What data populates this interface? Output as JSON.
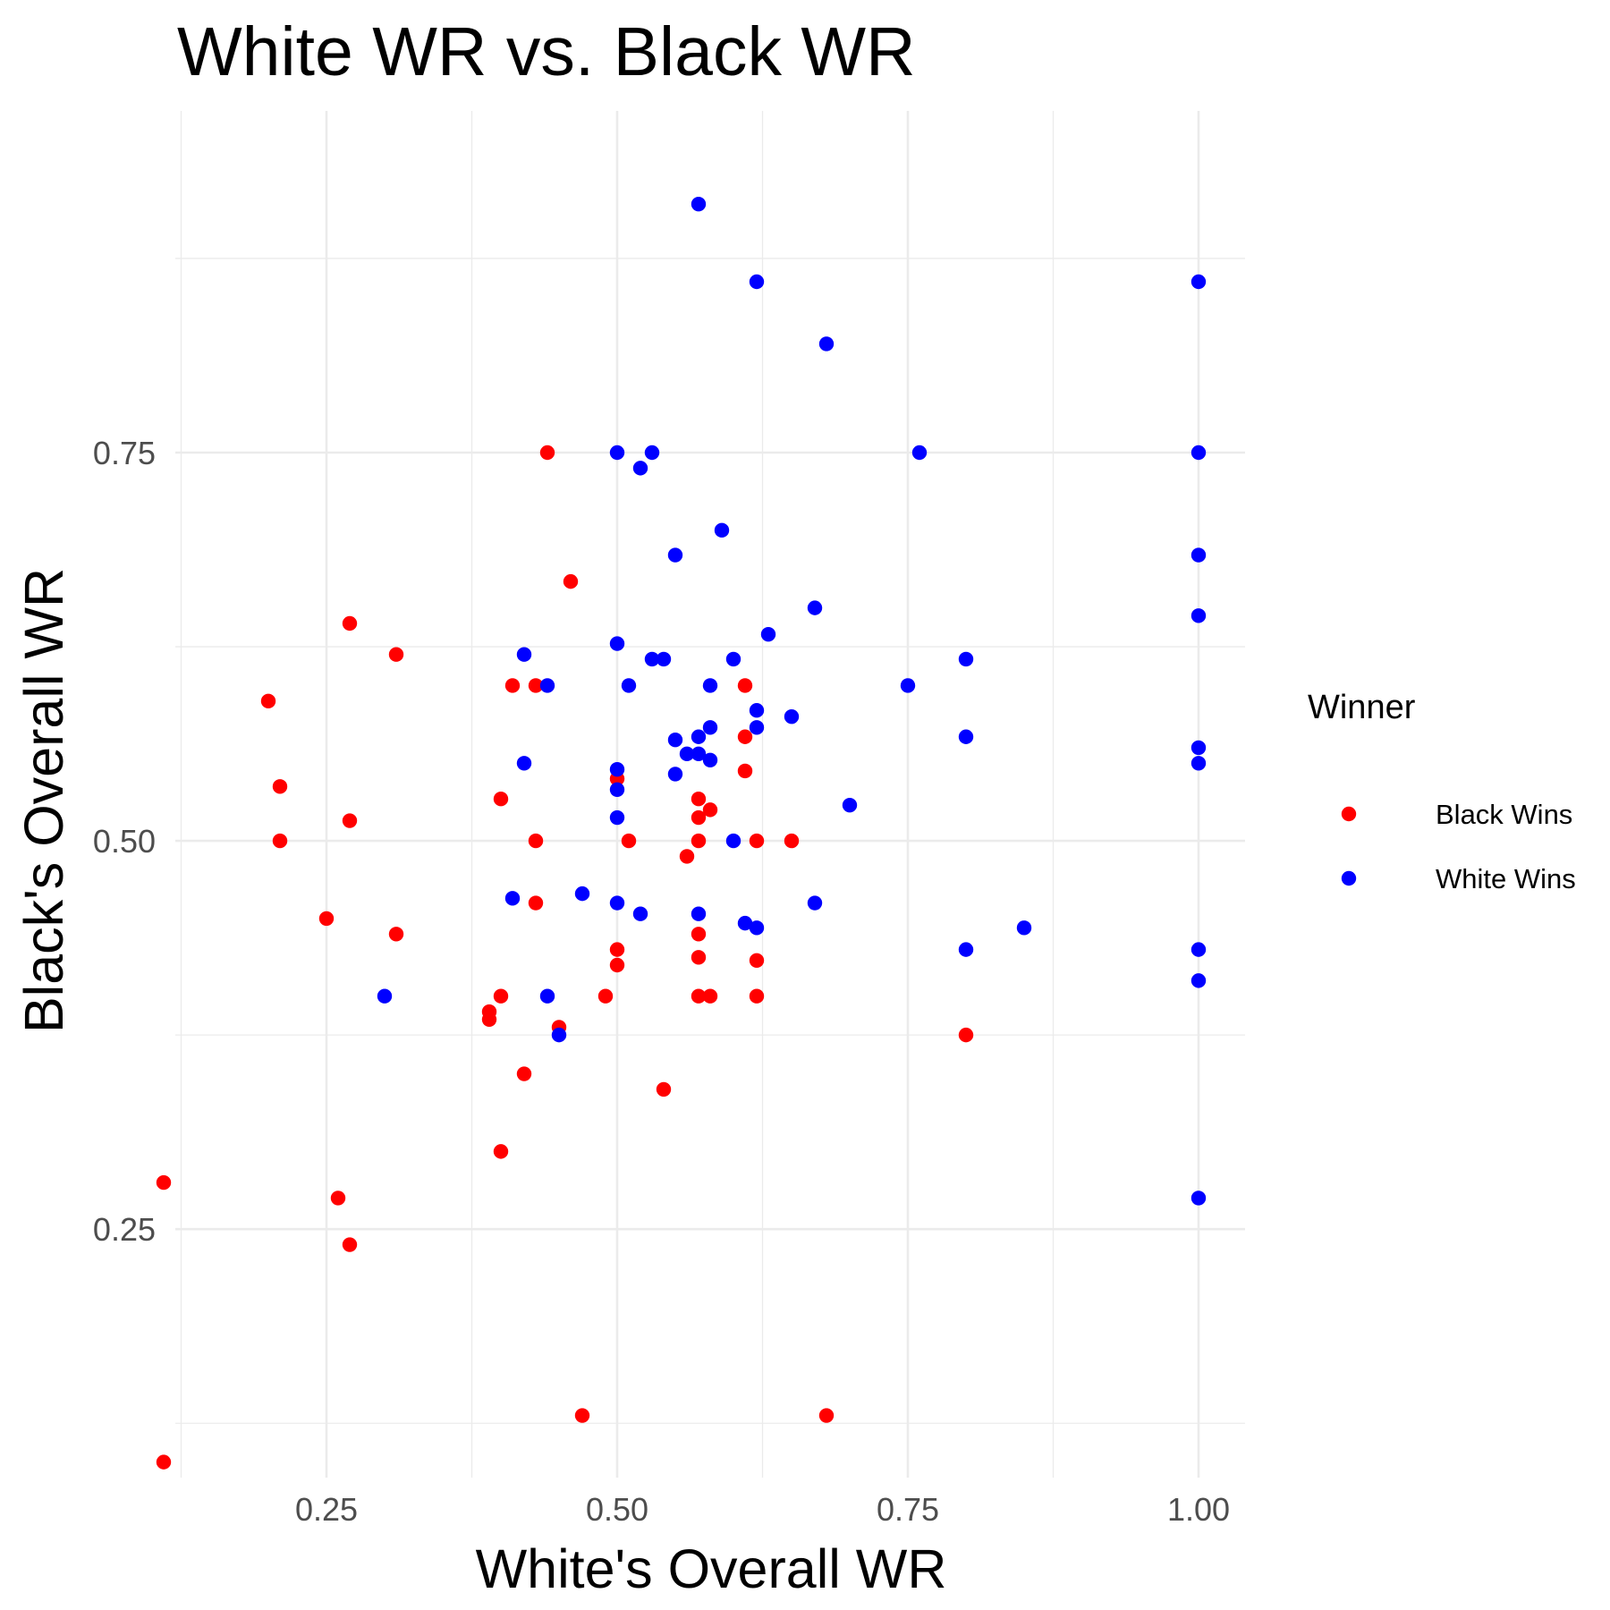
{
  "chart_data": {
    "type": "scatter",
    "title": "White WR vs. Black WR",
    "xlabel": "White's Overall WR",
    "ylabel": "Black's Overall WR",
    "xlim": [
      0.12,
      1.04
    ],
    "ylim": [
      0.09,
      0.97
    ],
    "x_ticks": [
      0.25,
      0.5,
      0.75,
      1.0
    ],
    "x_tick_labels": [
      "0.25",
      "0.50",
      "0.75",
      "1.00"
    ],
    "y_ticks": [
      0.25,
      0.5,
      0.75
    ],
    "y_tick_labels": [
      "0.25",
      "0.50",
      "0.75"
    ],
    "grid": true,
    "legend_position": "right",
    "legend_title": "Winner",
    "series": [
      {
        "name": "Black Wins",
        "color": "#ff0000",
        "points": [
          [
            0.44,
            0.75
          ],
          [
            0.46,
            0.667
          ],
          [
            0.27,
            0.64
          ],
          [
            0.31,
            0.62
          ],
          [
            0.2,
            0.59
          ],
          [
            0.41,
            0.6
          ],
          [
            0.43,
            0.6
          ],
          [
            0.21,
            0.535
          ],
          [
            0.27,
            0.513
          ],
          [
            0.21,
            0.5
          ],
          [
            0.4,
            0.527
          ],
          [
            0.43,
            0.5
          ],
          [
            0.25,
            0.45
          ],
          [
            0.31,
            0.44
          ],
          [
            0.43,
            0.46
          ],
          [
            0.5,
            0.54
          ],
          [
            0.51,
            0.5
          ],
          [
            0.39,
            0.39
          ],
          [
            0.39,
            0.385
          ],
          [
            0.4,
            0.4
          ],
          [
            0.45,
            0.38
          ],
          [
            0.42,
            0.35
          ],
          [
            0.4,
            0.3
          ],
          [
            0.49,
            0.4
          ],
          [
            0.5,
            0.43
          ],
          [
            0.5,
            0.42
          ],
          [
            0.11,
            0.28
          ],
          [
            0.26,
            0.27
          ],
          [
            0.27,
            0.24
          ],
          [
            0.11,
            0.1
          ],
          [
            0.47,
            0.13
          ],
          [
            0.54,
            0.34
          ],
          [
            0.56,
            0.49
          ],
          [
            0.57,
            0.527
          ],
          [
            0.57,
            0.515
          ],
          [
            0.58,
            0.52
          ],
          [
            0.57,
            0.5
          ],
          [
            0.57,
            0.44
          ],
          [
            0.57,
            0.425
          ],
          [
            0.57,
            0.4
          ],
          [
            0.58,
            0.4
          ],
          [
            0.61,
            0.6
          ],
          [
            0.61,
            0.567
          ],
          [
            0.61,
            0.545
          ],
          [
            0.62,
            0.5
          ],
          [
            0.65,
            0.5
          ],
          [
            0.62,
            0.423
          ],
          [
            0.62,
            0.4
          ],
          [
            0.68,
            0.13
          ],
          [
            0.8,
            0.375
          ]
        ]
      },
      {
        "name": "White Wins",
        "color": "#0000ff",
        "points": [
          [
            0.57,
            0.91
          ],
          [
            0.62,
            0.86
          ],
          [
            0.68,
            0.82
          ],
          [
            1.0,
            0.86
          ],
          [
            0.5,
            0.75
          ],
          [
            0.53,
            0.75
          ],
          [
            0.52,
            0.74
          ],
          [
            0.76,
            0.75
          ],
          [
            1.0,
            0.75
          ],
          [
            0.59,
            0.7
          ],
          [
            0.55,
            0.684
          ],
          [
            1.0,
            0.684
          ],
          [
            0.67,
            0.65
          ],
          [
            1.0,
            0.645
          ],
          [
            0.63,
            0.633
          ],
          [
            0.5,
            0.627
          ],
          [
            0.42,
            0.62
          ],
          [
            0.53,
            0.617
          ],
          [
            0.54,
            0.617
          ],
          [
            0.6,
            0.617
          ],
          [
            0.8,
            0.617
          ],
          [
            0.44,
            0.6
          ],
          [
            0.51,
            0.6
          ],
          [
            0.58,
            0.6
          ],
          [
            0.75,
            0.6
          ],
          [
            0.62,
            0.584
          ],
          [
            0.65,
            0.58
          ],
          [
            0.58,
            0.573
          ],
          [
            0.62,
            0.573
          ],
          [
            0.57,
            0.567
          ],
          [
            0.55,
            0.565
          ],
          [
            0.8,
            0.567
          ],
          [
            1.0,
            0.56
          ],
          [
            0.56,
            0.556
          ],
          [
            0.57,
            0.556
          ],
          [
            0.58,
            0.552
          ],
          [
            0.42,
            0.55
          ],
          [
            1.0,
            0.55
          ],
          [
            0.5,
            0.546
          ],
          [
            0.55,
            0.543
          ],
          [
            0.5,
            0.533
          ],
          [
            0.7,
            0.523
          ],
          [
            0.5,
            0.515
          ],
          [
            0.6,
            0.5
          ],
          [
            0.41,
            0.463
          ],
          [
            0.47,
            0.466
          ],
          [
            0.5,
            0.46
          ],
          [
            0.52,
            0.453
          ],
          [
            0.57,
            0.453
          ],
          [
            0.61,
            0.447
          ],
          [
            0.62,
            0.444
          ],
          [
            0.67,
            0.46
          ],
          [
            0.85,
            0.444
          ],
          [
            0.8,
            0.43
          ],
          [
            1.0,
            0.43
          ],
          [
            1.0,
            0.41
          ],
          [
            0.3,
            0.4
          ],
          [
            0.44,
            0.4
          ],
          [
            0.45,
            0.375
          ],
          [
            1.0,
            0.27
          ]
        ]
      }
    ]
  }
}
